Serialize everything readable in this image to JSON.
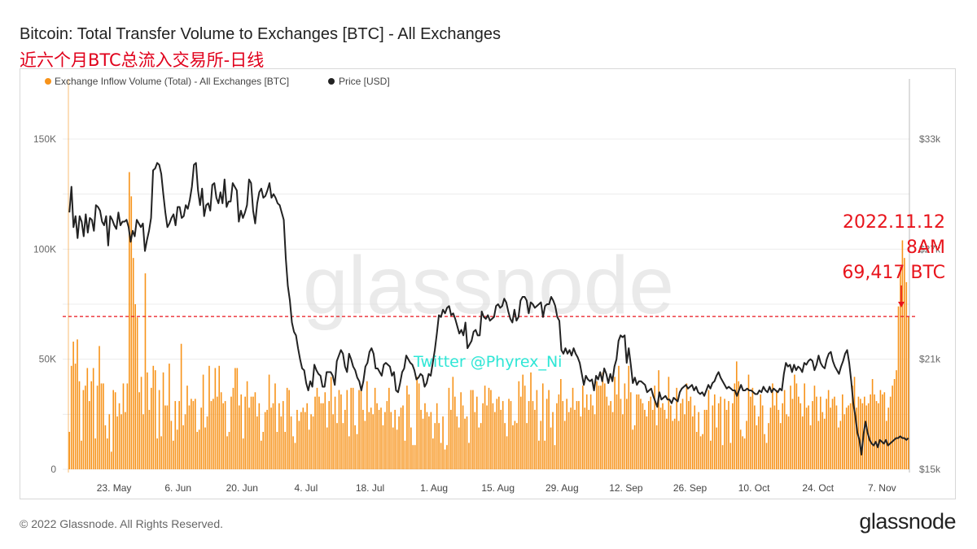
{
  "title": "Bitcoin: Total Transfer Volume to Exchanges [BTC] - All Exchanges",
  "subtitle": "近六个月BTC总流入交易所-日线",
  "footer": {
    "copyright": "© 2022 Glassnode. All Rights Reserved.",
    "logo": "glassnode"
  },
  "watermark": "glassnode",
  "twitter_note": "Twitter @Phyrex_Ni",
  "annotation": {
    "date": "2022.11.12",
    "time": "8AM",
    "value": "69,417 BTC",
    "color": "#e8141c"
  },
  "colors": {
    "bars": "#f7931a",
    "price_line": "#222222",
    "reference_line": "#e8141c",
    "twitter_text": "#2fe6d6"
  },
  "chart_data": {
    "type": "bar",
    "title": "Bitcoin: Total Transfer Volume to Exchanges [BTC] - All Exchanges",
    "x_start": "2022-05-13",
    "x_end": "2022-11-13",
    "x_tick_labels": [
      "23. May",
      "6. Jun",
      "20. Jun",
      "4. Jul",
      "18. Jul",
      "1. Aug",
      "15. Aug",
      "29. Aug",
      "12. Sep",
      "26. Sep",
      "10. Oct",
      "24. Oct",
      "7. Nov"
    ],
    "y_left": {
      "range": [
        0,
        150000
      ],
      "ticks": [
        0,
        50000,
        100000,
        150000
      ],
      "tick_labels": [
        "0",
        "50K",
        "100K",
        "150K"
      ]
    },
    "y_right": {
      "range": [
        15000,
        33000
      ],
      "ticks": [
        15000,
        21000,
        27000,
        33000
      ],
      "tick_labels": [
        "$15k",
        "$21k",
        "$27k",
        "$33k"
      ]
    },
    "reference_line": 69417,
    "grid": "horizontal",
    "legend_position": "top-left",
    "series": [
      {
        "name": "Exchange Inflow Volume (Total) - All Exchanges [BTC]",
        "type": "bar",
        "values": [
          17000,
          47000,
          58000,
          48000,
          59000,
          40000,
          13000,
          36000,
          38000,
          46000,
          31000,
          40000,
          46000,
          14000,
          38000,
          56000,
          39000,
          39000,
          20000,
          14000,
          25000,
          8000,
          36000,
          35000,
          24000,
          30000,
          25000,
          39000,
          26000,
          39000,
          135000,
          124000,
          96000,
          75000,
          69000,
          35000,
          42000,
          25000,
          89000,
          44000,
          27000,
          37000,
          47000,
          45000,
          14000,
          36000,
          15000,
          44000,
          29000,
          29000,
          48000,
          22000,
          13000,
          31000,
          18000,
          31000,
          57000,
          20000,
          25000,
          38000,
          29000,
          32000,
          31000,
          32000,
          17000,
          18000,
          28000,
          43000,
          19000,
          24000,
          47000,
          31000,
          32000,
          46000,
          33000,
          47000,
          35000,
          30000,
          31000,
          15000,
          17000,
          33000,
          37000,
          46000,
          46000,
          29000,
          34000,
          14000,
          33000,
          40000,
          28000,
          33000,
          33000,
          35000,
          24000,
          30000,
          13000,
          17000,
          26000,
          27000,
          43000,
          28000,
          30000,
          39000,
          17000,
          30000,
          24000,
          31000,
          17000,
          37000,
          36000,
          24000,
          15000,
          12000,
          27000,
          22000,
          26000,
          28000,
          26000,
          30000,
          18000,
          25000,
          24000,
          33000,
          37000,
          33000,
          30000,
          30000,
          35000,
          19000,
          31000,
          42000,
          25000,
          33000,
          21000,
          36000,
          34000,
          21000,
          27000,
          36000,
          15000,
          37000,
          37000,
          20000,
          16000,
          36000,
          36000,
          27000,
          22000,
          40000,
          26000,
          28000,
          25000,
          37000,
          30000,
          27000,
          28000,
          20000,
          26000,
          31000,
          37000,
          26000,
          19000,
          27000,
          18000,
          24000,
          28000,
          29000,
          13000,
          38000,
          34000,
          19000,
          11000,
          11000,
          42000,
          39000,
          27000,
          23000,
          30000,
          26000,
          24000,
          26000,
          14000,
          21000,
          30000,
          21000,
          12000,
          24000,
          9000,
          11000,
          37000,
          27000,
          42000,
          33000,
          24000,
          19000,
          35000,
          29000,
          23000,
          24000,
          12000,
          36000,
          36000,
          26000,
          33000,
          19000,
          21000,
          30000,
          38000,
          29000,
          37000,
          36000,
          30000,
          26000,
          32000,
          33000,
          27000,
          31000,
          21000,
          15000,
          32000,
          31000,
          20000,
          22000,
          21000,
          40000,
          33000,
          43000,
          38000,
          21000,
          31000,
          44000,
          31000,
          27000,
          36000,
          13000,
          22000,
          39000,
          13000,
          32000,
          36000,
          19000,
          26000,
          11000,
          30000,
          34000,
          41000,
          31000,
          22000,
          32000,
          26000,
          28000,
          37000,
          27000,
          31000,
          31000,
          24000,
          38000,
          28000,
          34000,
          27000,
          34000,
          29000,
          25000,
          40000,
          38000,
          38000,
          44000,
          39000,
          33000,
          29000,
          31000,
          26000,
          42000,
          34000,
          47000,
          32000,
          25000,
          39000,
          32000,
          47000,
          35000,
          18000,
          20000,
          34000,
          34000,
          32000,
          30000,
          27000,
          24000,
          31000,
          33000,
          27000,
          38000,
          20000,
          45000,
          28000,
          30000,
          27000,
          23000,
          42000,
          29000,
          22000,
          23000,
          37000,
          22000,
          30000,
          32000,
          25000,
          39000,
          31000,
          33000,
          24000,
          29000,
          17000,
          26000,
          15000,
          16000,
          27000,
          27000,
          36000,
          13000,
          29000,
          34000,
          19000,
          30000,
          33000,
          11000,
          32000,
          27000,
          31000,
          12000,
          30000,
          39000,
          49000,
          40000,
          18000,
          15000,
          14000,
          22000,
          43000,
          33000,
          37000,
          29000,
          20000,
          24000,
          34000,
          29000,
          16000,
          12000,
          21000,
          28000,
          39000,
          29000,
          36000,
          27000,
          21000,
          30000,
          36000,
          25000,
          24000,
          38000,
          32000,
          43000,
          39000,
          33000,
          30000,
          24000,
          39000,
          28000,
          29000,
          20000,
          31000,
          38000,
          33000,
          22000,
          33000,
          26000,
          23000,
          32000,
          36000,
          28000,
          32000,
          33000,
          29000,
          19000,
          22000,
          34000,
          25000,
          28000,
          29000,
          30000,
          38000,
          42000,
          28000,
          33000,
          32000,
          30000,
          33000,
          29000,
          30000,
          34000,
          41000,
          34000,
          31000,
          30000,
          36000,
          34000,
          35000,
          22000,
          28000,
          33000,
          38000,
          41000,
          45000,
          74000,
          92000,
          104000,
          96000,
          85000,
          69417
        ]
      },
      {
        "name": "Price [USD]",
        "type": "line",
        "axis": "right",
        "values": [
          29000,
          30400,
          28200,
          28800,
          27600,
          28800,
          28500,
          27700,
          28900,
          27900,
          28700,
          28600,
          28000,
          29400,
          29300,
          29100,
          28500,
          28300,
          28800,
          27200,
          28800,
          28600,
          28300,
          28100,
          29000,
          28300,
          28500,
          28500,
          28600,
          28200,
          27400,
          28000,
          27700,
          28600,
          28400,
          28200,
          28400,
          26900,
          27500,
          28000,
          28700,
          31300,
          31400,
          31700,
          31600,
          31100,
          30000,
          29000,
          28200,
          28400,
          28700,
          28900,
          28300,
          29300,
          29300,
          28700,
          28800,
          29400,
          29200,
          29700,
          30400,
          31600,
          31700,
          30200,
          29400,
          30300,
          28800,
          29400,
          29500,
          29100,
          30500,
          30600,
          29800,
          29500,
          30100,
          29500,
          30800,
          29300,
          29600,
          29600,
          30600,
          30400,
          30200,
          28500,
          29100,
          28700,
          29000,
          29400,
          30800,
          30600,
          29100,
          28400,
          29500,
          30100,
          30300,
          29800,
          29900,
          30200,
          30600,
          29800,
          30000,
          29800,
          29500,
          29400,
          29000,
          28600,
          26500,
          25000,
          24200,
          23000,
          22500,
          22300,
          21600,
          21000,
          20500,
          20400,
          19700,
          19300,
          19800,
          19500,
          20700,
          20400,
          20200,
          20100,
          19500,
          19500,
          20300,
          20300,
          20300,
          20100,
          19600,
          20900,
          21200,
          21500,
          21300,
          20600,
          20300,
          21300,
          21000,
          20600,
          20400,
          20000,
          19800,
          19300,
          19800,
          20600,
          20800,
          21400,
          21600,
          21300,
          20500,
          20500,
          20300,
          20100,
          20700,
          20800,
          20700,
          20600,
          20100,
          20300,
          19300,
          19200,
          19700,
          20300,
          20500,
          21200,
          21000,
          20800,
          20700,
          20400,
          19900,
          20000,
          20200,
          20100,
          19500,
          19700,
          20200,
          20100,
          20800,
          21500,
          22400,
          23400,
          23300,
          23700,
          23500,
          23800,
          23900,
          23400,
          23500,
          23200,
          22800,
          22400,
          22600,
          22300,
          23000,
          21600,
          21800,
          22000,
          22500,
          22600,
          22300,
          22300,
          23600,
          23300,
          23200,
          23400,
          23100,
          23200,
          23300,
          23900,
          24000,
          23800,
          23900,
          24300,
          24100,
          23600,
          23200,
          23000,
          23700,
          23100,
          23300,
          24200,
          24400,
          24400,
          24200,
          23500,
          24100,
          24000,
          23800,
          23900,
          24000,
          24100,
          23300,
          23900,
          24000,
          24000,
          24400,
          24200,
          23900,
          23300,
          23100,
          21500,
          21300,
          21600,
          21300,
          21500,
          21200,
          21600,
          21300,
          21100,
          20800,
          20200,
          19600,
          20100,
          19900,
          19800,
          19900,
          19300,
          20100,
          19900,
          20300,
          19800,
          20500,
          20200,
          19700,
          20200,
          19800,
          20600,
          21000,
          22000,
          22300,
          22200,
          22300,
          20800,
          21600,
          20700,
          19700,
          20000,
          19600,
          19800,
          19800,
          19700,
          19600,
          19200,
          19300,
          19400,
          19000,
          18700,
          18400,
          19200,
          18800,
          18900,
          19000,
          18800,
          18800,
          18600,
          18900,
          18800,
          18700,
          19200,
          19400,
          19500,
          19600,
          19400,
          19500,
          19600,
          19300,
          19500,
          19200,
          19100,
          19200,
          19000,
          19300,
          19600,
          19400,
          19700,
          19800,
          20100,
          20300,
          20000,
          19800,
          19600,
          19400,
          19500,
          19400,
          19300,
          19300,
          19000,
          19300,
          19600,
          19300,
          19300,
          19400,
          19300,
          19300,
          19200,
          19100,
          19100,
          19300,
          19200,
          19500,
          19300,
          19200,
          19500,
          19200,
          19400,
          19300,
          19200,
          19400,
          19300,
          20200,
          20800,
          20600,
          20700,
          20300,
          20700,
          20400,
          20600,
          20500,
          20300,
          20800,
          20700,
          20900,
          21000,
          20900,
          20400,
          20700,
          21200,
          20800,
          20600,
          20500,
          21000,
          21300,
          21400,
          20900,
          20600,
          20400,
          20200,
          20600,
          20900,
          21300,
          21500,
          20800,
          19800,
          18600,
          17900,
          17000,
          16600,
          15800,
          16900,
          17600,
          17000,
          16600,
          16400,
          16300,
          16500,
          16200,
          16600,
          16500,
          16400,
          16600,
          16300,
          16400,
          16500,
          16600,
          16700,
          16700,
          16800,
          16700,
          16700,
          16600,
          16700
        ]
      }
    ]
  }
}
